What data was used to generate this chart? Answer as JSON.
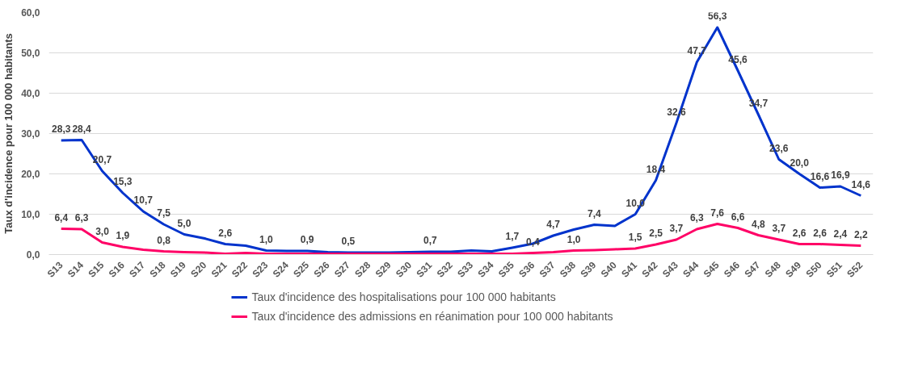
{
  "chart_data": {
    "type": "line",
    "ylabel": "Taux d'incidence pour 100 000 habitants",
    "categories": [
      "S13",
      "S14",
      "S15",
      "S16",
      "S17",
      "S18",
      "S19",
      "S20",
      "S21",
      "S22",
      "S23",
      "S24",
      "S25",
      "S26",
      "S27",
      "S28",
      "S29",
      "S30",
      "S31",
      "S32",
      "S33",
      "S34",
      "S35",
      "S36",
      "S37",
      "S38",
      "S39",
      "S40",
      "S41",
      "S42",
      "S43",
      "S44",
      "S45",
      "S46",
      "S47",
      "S48",
      "S49",
      "S50",
      "S51",
      "S52"
    ],
    "ylim": [
      0,
      60
    ],
    "yticks": [
      {
        "value": 0,
        "label": "0,0"
      },
      {
        "value": 10,
        "label": "10,0"
      },
      {
        "value": 20,
        "label": "20,0"
      },
      {
        "value": 30,
        "label": "30,0"
      },
      {
        "value": 40,
        "label": "40,0"
      },
      {
        "value": 50,
        "label": "50,0"
      },
      {
        "value": 60,
        "label": "60,0"
      }
    ],
    "grid": "y",
    "legend": "bottom",
    "marker": "none",
    "line_style": "solid",
    "series": [
      {
        "name": "Taux d'incidence des hospitalisations pour 100 000 habitants",
        "color": "#0033cc",
        "values": [
          28.3,
          28.4,
          20.7,
          15.3,
          10.7,
          7.5,
          5.0,
          4.0,
          2.6,
          2.2,
          1.0,
          0.9,
          0.9,
          0.6,
          0.5,
          0.5,
          0.5,
          0.6,
          0.7,
          0.7,
          1.0,
          0.8,
          1.7,
          2.7,
          4.7,
          6.2,
          7.4,
          7.1,
          10.0,
          18.4,
          32.6,
          47.7,
          56.3,
          45.6,
          34.7,
          23.6,
          20.0,
          16.6,
          16.9,
          14.6
        ],
        "value_labels": [
          "28,3",
          "28,4",
          "20,7",
          "15,3",
          "10,7",
          "7,5",
          "5,0",
          null,
          "2,6",
          null,
          "1,0",
          null,
          "0,9",
          null,
          "0,5",
          null,
          null,
          null,
          "0,7",
          null,
          null,
          null,
          "1,7",
          null,
          "4,7",
          null,
          "7,4",
          null,
          "10,0",
          "18,4",
          "32,6",
          "47,7",
          "56,3",
          "45,6",
          "34,7",
          "23,6",
          "20,0",
          "16,6",
          "16,9",
          "14,6"
        ]
      },
      {
        "name": "Taux d'incidence des admissions en réanimation pour 100 000 habitants",
        "color": "#ff0066",
        "values": [
          6.4,
          6.3,
          3.0,
          1.9,
          1.2,
          0.8,
          0.6,
          0.5,
          0.2,
          0.4,
          0.2,
          0.2,
          0.2,
          0.2,
          0.2,
          0.2,
          0.2,
          0.2,
          0.2,
          0.2,
          0.2,
          0.2,
          0.2,
          0.4,
          0.6,
          1.0,
          1.1,
          1.3,
          1.5,
          2.5,
          3.7,
          6.3,
          7.6,
          6.6,
          4.8,
          3.7,
          2.6,
          2.6,
          2.4,
          2.2
        ],
        "value_labels": [
          "6,4",
          "6,3",
          "3,0",
          "1,9",
          null,
          "0,8",
          null,
          null,
          null,
          null,
          null,
          null,
          null,
          null,
          null,
          null,
          null,
          null,
          null,
          null,
          null,
          null,
          null,
          "0,4",
          null,
          "1,0",
          null,
          null,
          "1,5",
          "2,5",
          "3,7",
          "6,3",
          "7,6",
          "6,6",
          "4,8",
          "3,7",
          "2,6",
          "2,6",
          "2,4",
          "2,2"
        ]
      }
    ]
  }
}
